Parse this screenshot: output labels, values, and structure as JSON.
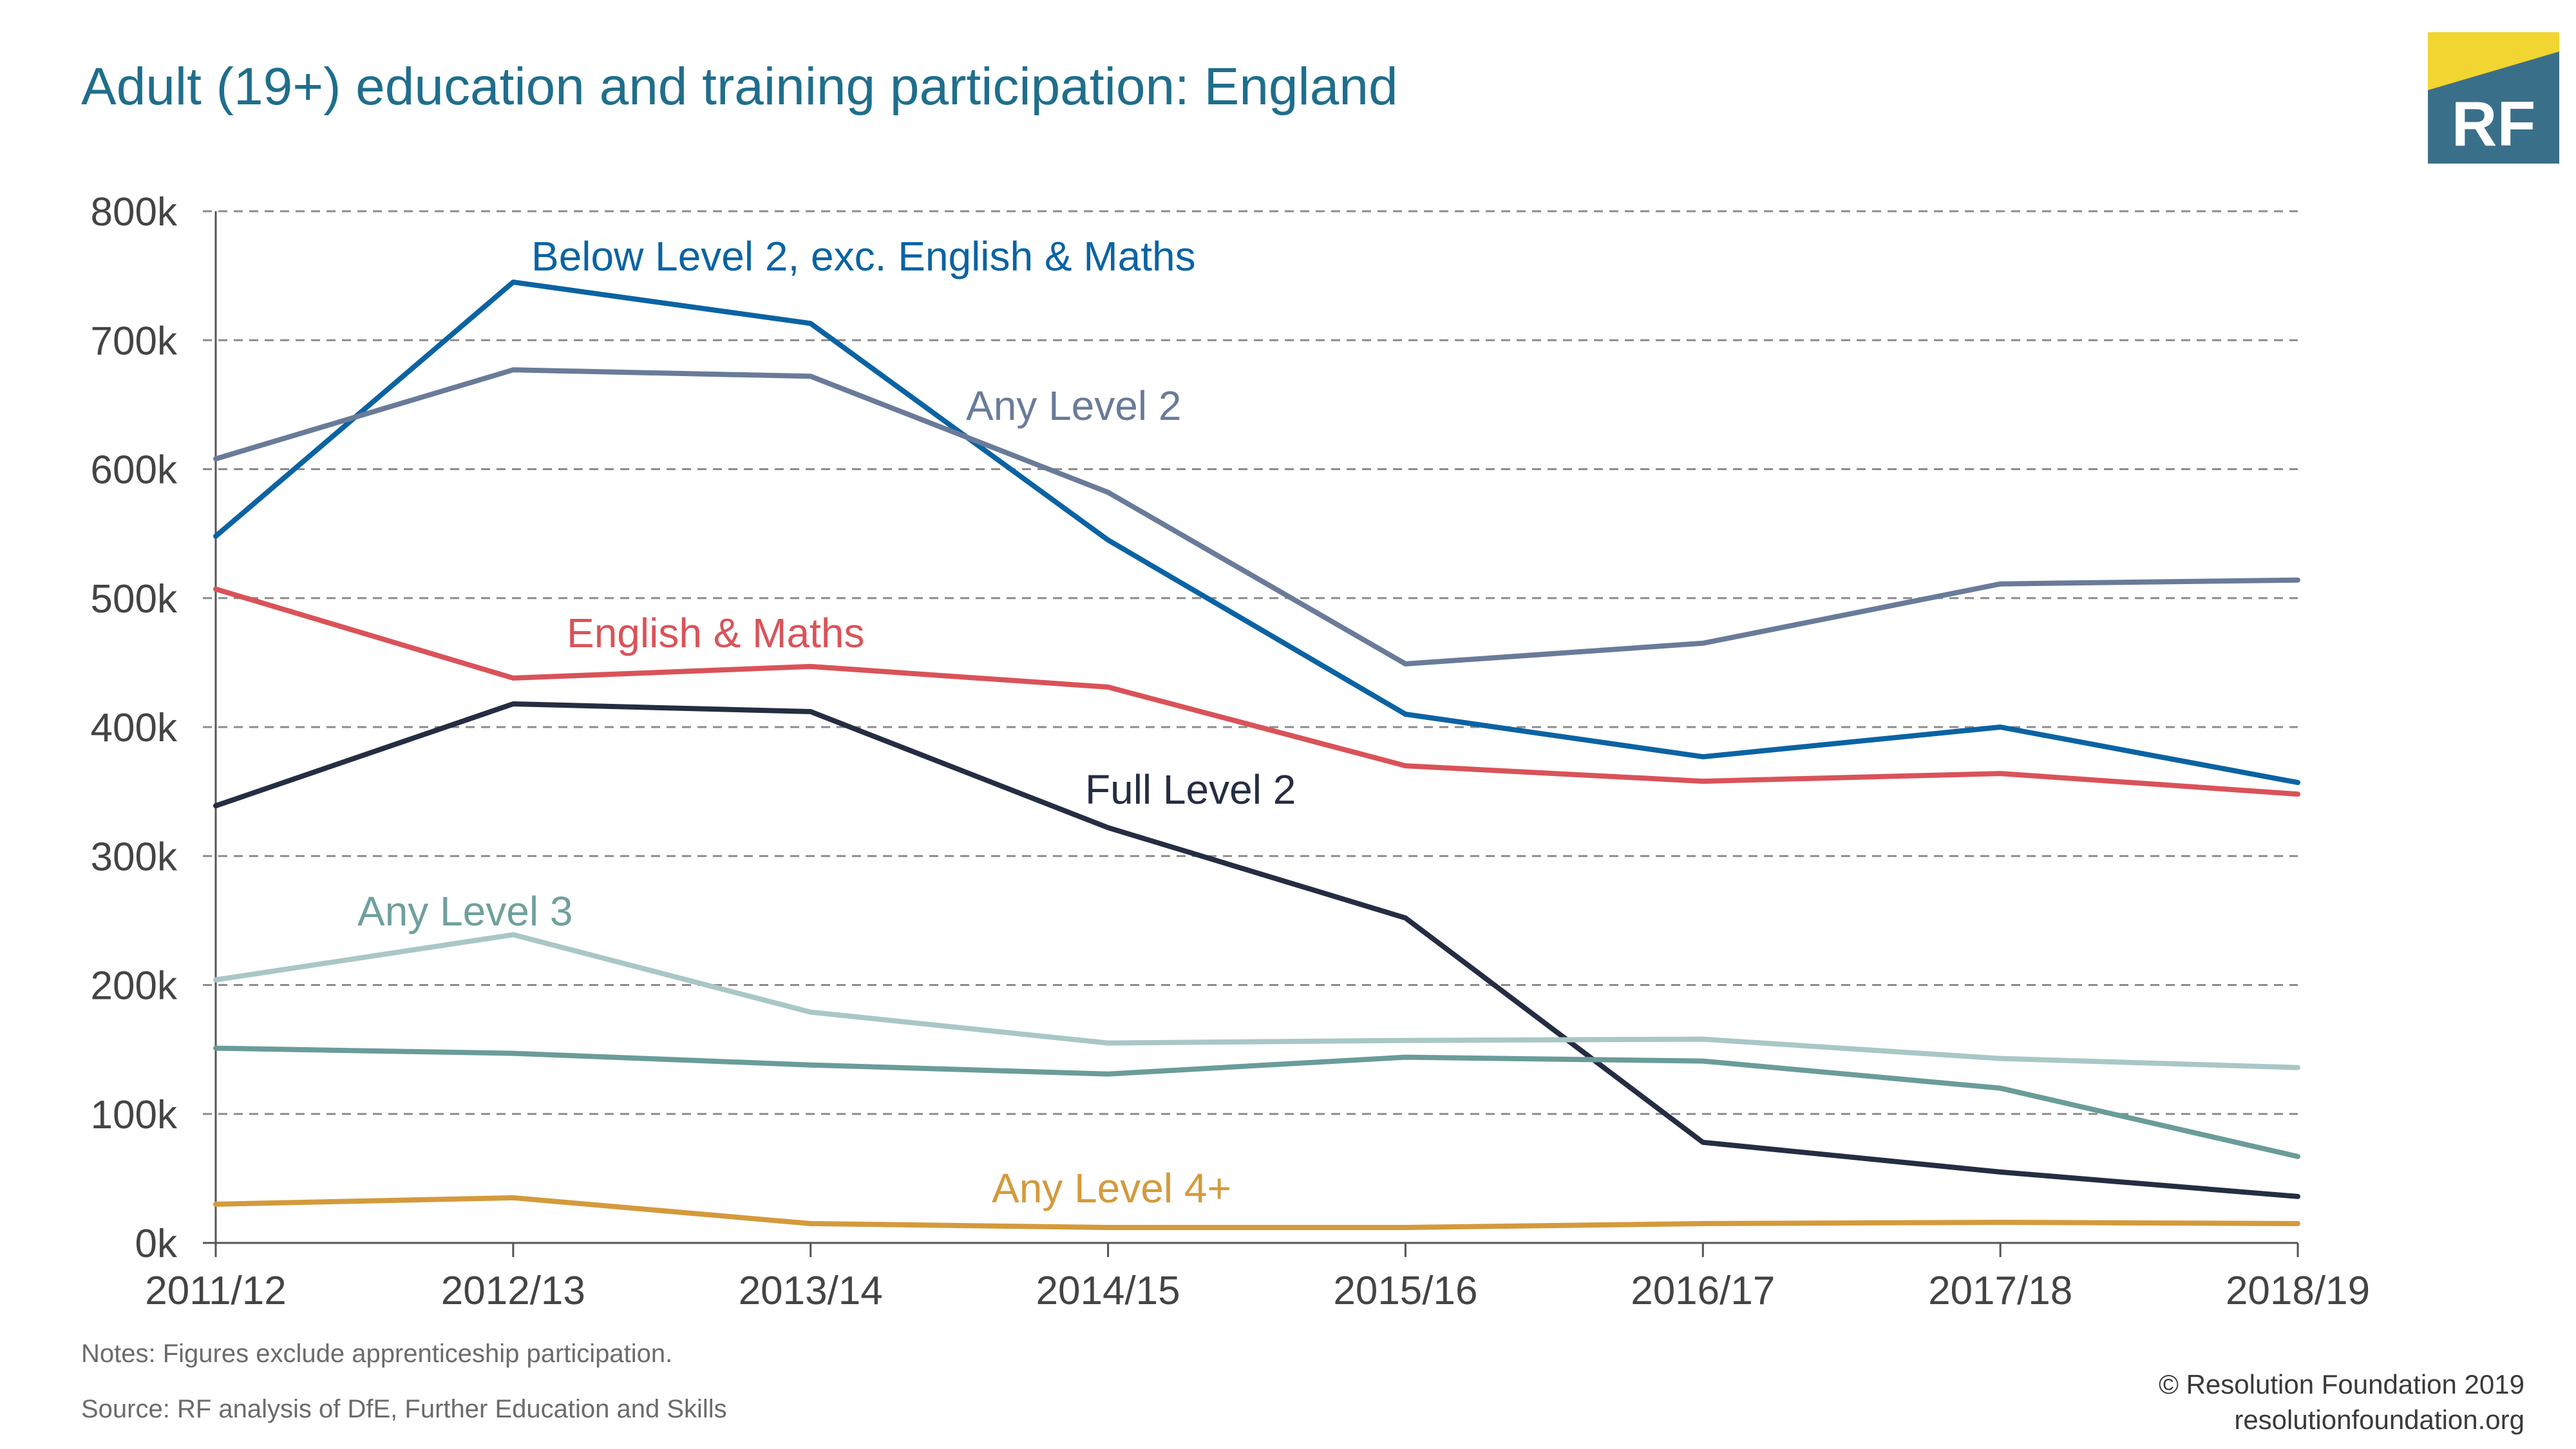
{
  "title": "Adult (19+) education and training participation: England",
  "logo": {
    "text": "RF",
    "brand_color": "#3a6f8a",
    "accent_color": "#f1d531"
  },
  "notes": "Notes: Figures exclude apprenticeship participation.",
  "source": "Source: RF analysis of DfE, Further Education and Skills",
  "copyright": "© Resolution Foundation 2019",
  "website": "resolutionfoundation.org",
  "chart_data": {
    "type": "line",
    "categories": [
      "2011/12",
      "2012/13",
      "2013/14",
      "2014/15",
      "2015/16",
      "2016/17",
      "2017/18",
      "2018/19"
    ],
    "ylim": [
      0,
      800000
    ],
    "yticks": [
      0,
      100000,
      200000,
      300000,
      400000,
      500000,
      600000,
      700000,
      800000
    ],
    "ytick_labels": [
      "0k",
      "100k",
      "200k",
      "300k",
      "400k",
      "500k",
      "600k",
      "700k",
      "800k"
    ],
    "grid": "horizontal dashed",
    "series": [
      {
        "name": "Below Level 2, exc. English & Maths",
        "color": "#0a63a3",
        "label_color": "#0a63a3",
        "values": [
          548000,
          745000,
          713000,
          545000,
          410000,
          377000,
          400000,
          357000
        ]
      },
      {
        "name": "Any Level 2",
        "color": "#6a7b99",
        "label_color": "#6a7b99",
        "values": [
          608000,
          677000,
          672000,
          582000,
          449000,
          465000,
          511000,
          514000
        ]
      },
      {
        "name": "English & Maths",
        "color": "#d95359",
        "label_color": "#d95359",
        "values": [
          507000,
          438000,
          447000,
          431000,
          370000,
          358000,
          364000,
          348000
        ]
      },
      {
        "name": "Full Level 2",
        "color": "#252d42",
        "label_color": "#252d42",
        "values": [
          339000,
          418000,
          412000,
          322000,
          252000,
          78000,
          55000,
          36000
        ]
      },
      {
        "name": "Any Level 3",
        "color": "#a9c7c6",
        "label_color": "#6fa09d",
        "values": [
          204000,
          239000,
          179000,
          155000,
          157000,
          158000,
          143000,
          136000
        ]
      },
      {
        "name": "",
        "color": "#6a9c99",
        "values": [
          151000,
          147000,
          138000,
          131000,
          144000,
          141000,
          120000,
          67000
        ]
      },
      {
        "name": "Any Level 4+",
        "color": "#d49a3c",
        "label_color": "#d49a3c",
        "values": [
          30000,
          35000,
          15000,
          12000,
          12000,
          15000,
          16000,
          15000
        ]
      }
    ]
  }
}
